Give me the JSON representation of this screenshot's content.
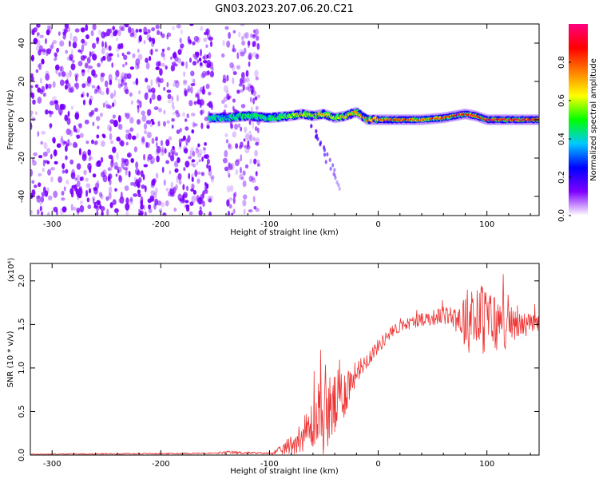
{
  "figure": {
    "title": "GN03.2023.207.06.20.C21"
  },
  "chart_data": [
    {
      "type": "heatmap",
      "title": "GN03.2023.207.06.20.C21",
      "xlabel": "Height of straight line (km)",
      "ylabel": "Frequency (Hz)",
      "xlim": [
        -320,
        148
      ],
      "ylim": [
        -50,
        50
      ],
      "x_ticks": [
        -300,
        -200,
        -100,
        0,
        100
      ],
      "x_tick_labels": [
        "-300",
        "-200",
        "-100",
        "0",
        "100"
      ],
      "y_ticks": [
        -40,
        -20,
        0,
        20,
        40
      ],
      "y_tick_labels": [
        "-40",
        "-20",
        "0",
        "20",
        "40"
      ],
      "colorbar": {
        "label": "Normalized spectral amplitude",
        "range": [
          0,
          1
        ],
        "ticks": [
          0.0,
          0.2,
          0.4,
          0.6,
          0.8
        ],
        "tick_labels": [
          "0.0",
          "0.2",
          "0.4",
          "0.6",
          "0.8"
        ],
        "colors": [
          "#ffffff",
          "#7f00ff",
          "#0000ff",
          "#00c8ff",
          "#00ff00",
          "#ffff00",
          "#ff8000",
          "#ff0000",
          "#ff0080"
        ]
      },
      "noise_regions": [
        {
          "x_range": [
            -320,
            -152
          ],
          "level": 0.35
        },
        {
          "x_range": [
            -143,
            -110
          ],
          "level": 0.3
        }
      ],
      "signal_ridge": {
        "x": [
          -155,
          -140,
          -120,
          -100,
          -80,
          -70,
          -60,
          -50,
          -40,
          -30,
          -20,
          -10,
          0,
          20,
          40,
          60,
          70,
          80,
          90,
          100,
          120,
          148
        ],
        "frequency": [
          1,
          1,
          2,
          1,
          2,
          3,
          2,
          3,
          1,
          2,
          4,
          0,
          0,
          0,
          0,
          1,
          2,
          3,
          2,
          0,
          0,
          0
        ],
        "amplitude": [
          0.45,
          0.4,
          0.5,
          0.45,
          0.6,
          0.7,
          0.65,
          0.75,
          0.6,
          0.7,
          0.75,
          0.8,
          0.8,
          0.85,
          0.8,
          0.85,
          0.9,
          0.9,
          0.85,
          0.9,
          0.95,
          0.9
        ]
      },
      "trailing_streak": {
        "x": [
          -60,
          -35
        ],
        "frequency": [
          -5,
          -35
        ]
      }
    },
    {
      "type": "line",
      "xlabel": "Height of straight line (km)",
      "ylabel": "SNR (10 * v/v)",
      "multiplier_label": "(x10⁴)",
      "xlim": [
        -320,
        148
      ],
      "ylim": [
        0,
        2.2
      ],
      "x_ticks": [
        -300,
        -200,
        -100,
        0,
        100
      ],
      "x_tick_labels": [
        "-300",
        "-200",
        "-100",
        "0",
        "100"
      ],
      "y_ticks": [
        0,
        0.5,
        1.0,
        1.5,
        2.0
      ],
      "y_tick_labels": [
        "0.0",
        "0.5",
        "1.0",
        "1.5",
        "2.0"
      ],
      "series": [
        {
          "color": "#ee3333",
          "envelope": {
            "x": [
              -320,
              -150,
              -140,
              -100,
              -90,
              -80,
              -70,
              -60,
              -50,
              -40,
              -30,
              -20,
              -10,
              0,
              10,
              20,
              30,
              40,
              60,
              70,
              80,
              90,
              100,
              110,
              120,
              130,
              148
            ],
            "mean": [
              0.01,
              0.02,
              0.03,
              0.02,
              0.05,
              0.12,
              0.22,
              0.35,
              0.45,
              0.55,
              0.75,
              0.95,
              1.1,
              1.25,
              1.38,
              1.48,
              1.52,
              1.56,
              1.6,
              1.6,
              1.55,
              1.58,
              1.55,
              1.5,
              1.48,
              1.5,
              1.5
            ],
            "spread": [
              0.005,
              0.01,
              0.02,
              0.01,
              0.05,
              0.12,
              0.18,
              0.3,
              0.45,
              0.4,
              0.3,
              0.12,
              0.1,
              0.08,
              0.08,
              0.07,
              0.07,
              0.08,
              0.1,
              0.15,
              0.35,
              0.45,
              0.4,
              0.35,
              0.25,
              0.15,
              0.1
            ]
          }
        }
      ]
    }
  ]
}
